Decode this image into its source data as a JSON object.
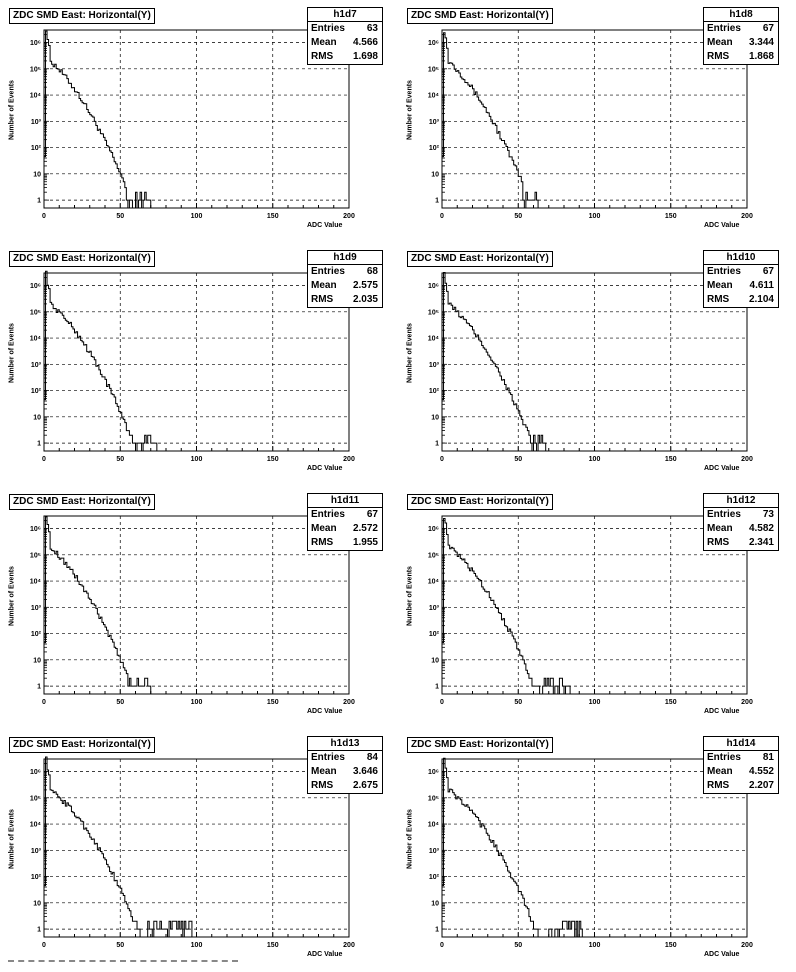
{
  "panel_title": "ZDC SMD East: Horizontal(Y)",
  "xlabel": "ADC Value",
  "ylabel": "Number of Events",
  "stats_labels": {
    "entries": "Entries",
    "mean": "Mean",
    "rms": "RMS"
  },
  "x_ticks": [
    "0",
    "50",
    "100",
    "150",
    "200"
  ],
  "y_ticks": [
    "1",
    "10",
    "10²",
    "10³",
    "10⁴",
    "10⁵",
    "10⁶"
  ],
  "chart_data": [
    {
      "type": "bar",
      "name": "h1d7",
      "entries": "63",
      "mean": "4.566",
      "rms": "1.698",
      "xlim": [
        0,
        200
      ],
      "ylim": [
        0.5,
        3000000
      ],
      "yscale": "log",
      "grid": true,
      "bin_width": 1,
      "tail_end": 70,
      "cutoff": 53,
      "slope": 0.12
    },
    {
      "type": "bar",
      "name": "h1d8",
      "entries": "67",
      "mean": "3.344",
      "rms": "1.868",
      "xlim": [
        0,
        200
      ],
      "ylim": [
        0.5,
        3000000
      ],
      "yscale": "log",
      "grid": true,
      "bin_width": 1,
      "tail_end": 64,
      "cutoff": 52,
      "slope": 0.12
    },
    {
      "type": "bar",
      "name": "h1d9",
      "entries": "68",
      "mean": "2.575",
      "rms": "2.035",
      "xlim": [
        0,
        200
      ],
      "ylim": [
        0.5,
        3000000
      ],
      "yscale": "log",
      "grid": true,
      "bin_width": 1,
      "tail_end": 74,
      "cutoff": 57,
      "slope": 0.11
    },
    {
      "type": "bar",
      "name": "h1d10",
      "entries": "67",
      "mean": "4.611",
      "rms": "2.104",
      "xlim": [
        0,
        200
      ],
      "ylim": [
        0.5,
        3000000
      ],
      "yscale": "log",
      "grid": true,
      "bin_width": 1,
      "tail_end": 68,
      "cutoff": 56,
      "slope": 0.11
    },
    {
      "type": "bar",
      "name": "h1d11",
      "entries": "67",
      "mean": "2.572",
      "rms": "1.955",
      "xlim": [
        0,
        200
      ],
      "ylim": [
        0.5,
        3000000
      ],
      "yscale": "log",
      "grid": true,
      "bin_width": 1,
      "tail_end": 70,
      "cutoff": 54,
      "slope": 0.12
    },
    {
      "type": "bar",
      "name": "h1d12",
      "entries": "73",
      "mean": "4.582",
      "rms": "2.341",
      "xlim": [
        0,
        200
      ],
      "ylim": [
        0.5,
        3000000
      ],
      "yscale": "log",
      "grid": true,
      "bin_width": 1,
      "tail_end": 85,
      "cutoff": 62,
      "slope": 0.1
    },
    {
      "type": "bar",
      "name": "h1d13",
      "entries": "84",
      "mean": "3.646",
      "rms": "2.675",
      "xlim": [
        0,
        200
      ],
      "ylim": [
        0.5,
        3000000
      ],
      "yscale": "log",
      "grid": true,
      "bin_width": 1,
      "tail_end": 97,
      "cutoff": 67,
      "slope": 0.095
    },
    {
      "type": "bar",
      "name": "h1d14",
      "entries": "81",
      "mean": "4.552",
      "rms": "2.207",
      "xlim": [
        0,
        200
      ],
      "ylim": [
        0.5,
        3000000
      ],
      "yscale": "log",
      "grid": true,
      "bin_width": 1,
      "tail_end": 92,
      "cutoff": 68,
      "slope": 0.095
    }
  ]
}
